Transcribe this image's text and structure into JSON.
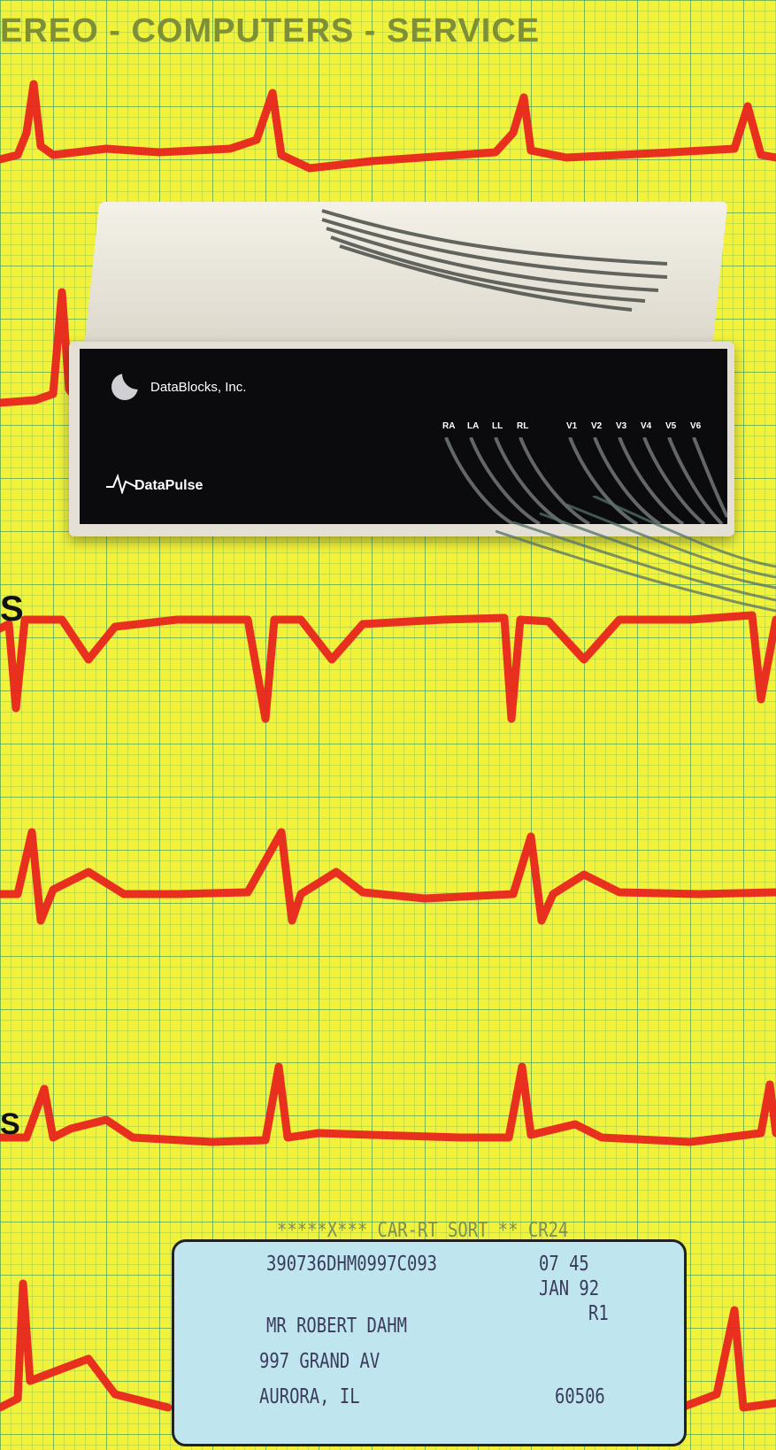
{
  "headline": "EREO - COMPUTERS - SERVICE",
  "edge_letters": {
    "middle": "S",
    "lower": "S"
  },
  "device": {
    "company": "DataBlocks, Inc.",
    "product": "DataPulse",
    "leads": [
      "RA",
      "LA",
      "LL",
      "RL",
      "V1",
      "V2",
      "V3",
      "V4",
      "V5",
      "V6"
    ]
  },
  "mailing_label": {
    "sort_line": "*****X*** CAR-RT SORT ** CR24",
    "account_code": "390736DHM0997C093",
    "issue_number": "07 45",
    "expiry": "JAN 92",
    "route": "R1",
    "name": "MR ROBERT DAHM",
    "street": "997 GRAND AV",
    "city_state": "AURORA, IL",
    "zip": "60506"
  },
  "colors": {
    "background": "#f2f23a",
    "grid": "#3c965a",
    "trace": "#e8201c",
    "label": "#bfe6ef",
    "device_panel": "#0b0b0d"
  }
}
